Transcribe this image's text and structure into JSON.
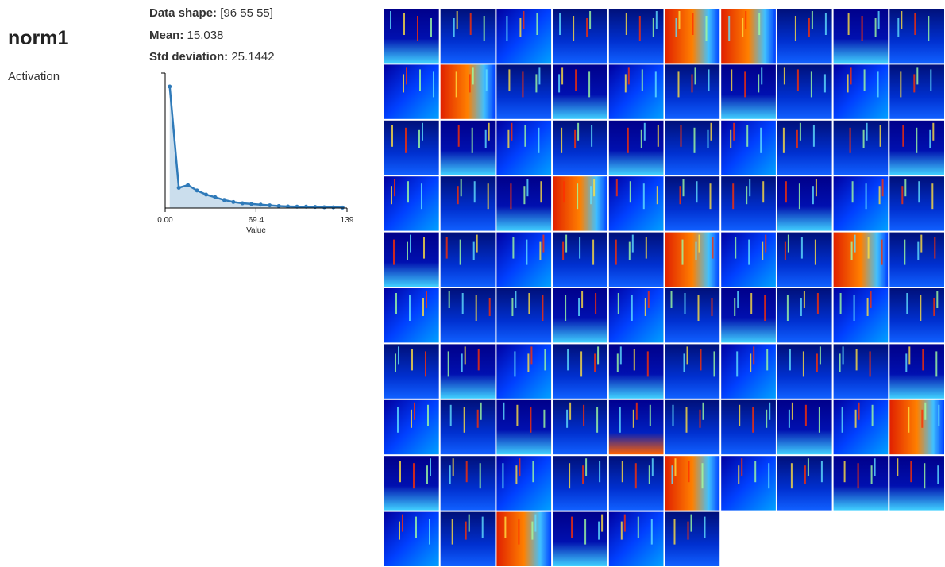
{
  "layer": {
    "name": "norm1",
    "kind": "Activation"
  },
  "stats": {
    "shape_label": "Data shape:",
    "shape": "[96 55 55]",
    "mean_label": "Mean:",
    "mean": "15.038",
    "std_label": "Std deviation:",
    "std": "25.1442"
  },
  "chart_data": {
    "type": "area",
    "x_label": "Value",
    "x": [
      3.475,
      10.425,
      17.375,
      24.325,
      31.275,
      38.225,
      45.175,
      52.125,
      59.075,
      66.025,
      72.975,
      79.925,
      86.875,
      93.825,
      100.775,
      107.725,
      114.675,
      121.625,
      128.575,
      135.525
    ],
    "series": [
      {
        "color": "#2f7ab9",
        "values": [
          0.9,
          0.15,
          0.17,
          0.13,
          0.1,
          0.08,
          0.06,
          0.045,
          0.035,
          0.03,
          0.025,
          0.02,
          0.015,
          0.012,
          0.01,
          0.01,
          0.008,
          0.006,
          0.005,
          0.004
        ]
      }
    ],
    "xlim": [
      0,
      139
    ],
    "ylim": [
      0,
      1
    ],
    "xticks": [
      {
        "value": 0,
        "label": "0.00"
      },
      69.4,
      139
    ]
  }
}
